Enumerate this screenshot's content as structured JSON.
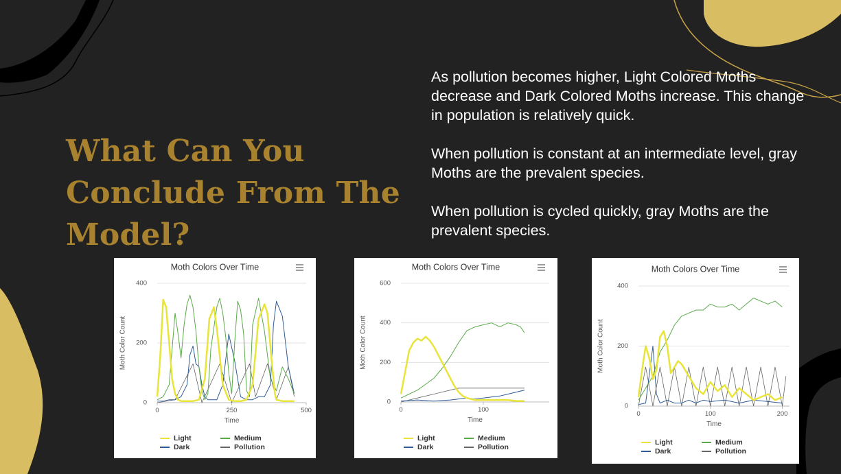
{
  "slide": {
    "title_lines": [
      "What Can You",
      "Conclude From The",
      "Model?"
    ],
    "paragraphs": [
      "As pollution becomes higher, Light Colored Moths decrease and Dark Colored Moths increase. This change in population is relatively quick.",
      "When pollution is constant at an intermediate level, gray Moths are the prevalent species.",
      "When pollution is cycled quickly, gray Moths are the prevalent species."
    ],
    "colors": {
      "background": "#232222",
      "title": "#a8822f",
      "text": "#ffffff",
      "gold": "#d9bd62"
    }
  },
  "chart_data": [
    {
      "type": "line",
      "title": "Moth Colors Over Time",
      "xlabel": "Time",
      "ylabel": "Moth Color Count",
      "xlim": [
        0,
        500
      ],
      "ylim": [
        0,
        400
      ],
      "xticks": [
        0,
        250,
        500
      ],
      "yticks": [
        0,
        200,
        400
      ],
      "grid": true,
      "legend": "bottom",
      "menu_icon": "hamburger-menu-icon",
      "series": [
        {
          "name": "Light",
          "color": "#e8e43a",
          "width": 2.5,
          "x": [
            0,
            10,
            20,
            30,
            40,
            50,
            60,
            70,
            80,
            90,
            100,
            120,
            140,
            160,
            175,
            190,
            200,
            220,
            240,
            260,
            280,
            300,
            320,
            340,
            360,
            370,
            385,
            395,
            400,
            420,
            440,
            460
          ],
          "y": [
            20,
            150,
            345,
            320,
            200,
            80,
            30,
            10,
            5,
            5,
            5,
            5,
            10,
            80,
            280,
            320,
            250,
            60,
            10,
            5,
            5,
            10,
            60,
            280,
            330,
            300,
            130,
            30,
            10,
            5,
            5,
            5
          ]
        },
        {
          "name": "Medium",
          "color": "#5aaa4a",
          "width": 1,
          "x": [
            0,
            20,
            40,
            50,
            60,
            70,
            80,
            90,
            100,
            110,
            120,
            130,
            140,
            150,
            160,
            170,
            180,
            200,
            210,
            220,
            230,
            240,
            250,
            260,
            270,
            280,
            290,
            300,
            310,
            320,
            340,
            360,
            380,
            400,
            420,
            440,
            460
          ],
          "y": [
            10,
            20,
            60,
            180,
            300,
            230,
            150,
            260,
            330,
            360,
            320,
            240,
            120,
            40,
            10,
            30,
            180,
            320,
            350,
            300,
            220,
            100,
            30,
            200,
            340,
            310,
            230,
            40,
            20,
            260,
            350,
            240,
            80,
            40,
            120,
            80,
            30
          ]
        },
        {
          "name": "Dark",
          "color": "#2f5b96",
          "width": 1,
          "x": [
            0,
            20,
            40,
            60,
            80,
            100,
            110,
            120,
            130,
            140,
            150,
            160,
            170,
            180,
            200,
            220,
            240,
            260,
            280,
            300,
            320,
            340,
            360,
            380,
            390,
            400,
            420,
            440,
            460
          ],
          "y": [
            5,
            5,
            10,
            10,
            20,
            60,
            160,
            190,
            130,
            120,
            60,
            20,
            10,
            10,
            10,
            60,
            230,
            140,
            20,
            10,
            10,
            20,
            20,
            60,
            260,
            340,
            290,
            120,
            30
          ]
        },
        {
          "name": "Pollution",
          "color": "#666666",
          "width": 0.8,
          "x": [
            0,
            60,
            120,
            150,
            210,
            250,
            310,
            330,
            370,
            400,
            440,
            460
          ],
          "y": [
            0,
            10,
            130,
            0,
            130,
            0,
            130,
            20,
            130,
            10,
            120,
            20
          ]
        }
      ]
    },
    {
      "type": "line",
      "title": "Moth Colors Over Time",
      "xlabel": "Time",
      "ylabel": "Moth Color Count",
      "xlim": [
        0,
        180
      ],
      "ylim": [
        0,
        600
      ],
      "xticks": [
        0,
        100
      ],
      "yticks": [
        0,
        200,
        400,
        600
      ],
      "grid": true,
      "legend": "bottom",
      "menu_icon": "hamburger-menu-icon",
      "series": [
        {
          "name": "Light",
          "color": "#e8e43a",
          "width": 2.5,
          "x": [
            0,
            5,
            10,
            15,
            20,
            25,
            30,
            35,
            40,
            45,
            50,
            55,
            60,
            65,
            70,
            75,
            80,
            85,
            90,
            100,
            110,
            120,
            130,
            140,
            150
          ],
          "y": [
            40,
            150,
            260,
            300,
            320,
            310,
            330,
            310,
            280,
            240,
            200,
            160,
            120,
            80,
            50,
            30,
            20,
            15,
            10,
            10,
            10,
            10,
            10,
            5,
            5
          ]
        },
        {
          "name": "Medium",
          "color": "#5aaa4a",
          "width": 1,
          "x": [
            0,
            10,
            20,
            30,
            40,
            50,
            60,
            70,
            80,
            90,
            100,
            110,
            120,
            130,
            140,
            145,
            150
          ],
          "y": [
            20,
            40,
            60,
            90,
            120,
            170,
            230,
            300,
            360,
            380,
            390,
            400,
            380,
            400,
            390,
            380,
            350
          ]
        },
        {
          "name": "Dark",
          "color": "#2f5b96",
          "width": 1,
          "x": [
            0,
            20,
            40,
            60,
            80,
            90,
            100,
            110,
            120,
            130,
            140,
            150
          ],
          "y": [
            5,
            10,
            5,
            10,
            20,
            15,
            20,
            25,
            30,
            40,
            50,
            60
          ]
        },
        {
          "name": "Pollution",
          "color": "#666666",
          "width": 0.8,
          "x": [
            0,
            20,
            40,
            60,
            70,
            80,
            100,
            120,
            150
          ],
          "y": [
            0,
            20,
            40,
            60,
            70,
            70,
            70,
            70,
            70
          ]
        }
      ]
    },
    {
      "type": "line",
      "title": "Moth Colors Over Time",
      "xlabel": "Time",
      "ylabel": "Moth Color Count",
      "xlim": [
        0,
        210
      ],
      "ylim": [
        0,
        400
      ],
      "xticks": [
        0,
        100,
        200
      ],
      "yticks": [
        0,
        200,
        400
      ],
      "grid": true,
      "legend": "bottom",
      "menu_icon": "hamburger-menu-icon",
      "series": [
        {
          "name": "Light",
          "color": "#e8e43a",
          "width": 2.5,
          "x": [
            0,
            5,
            10,
            15,
            20,
            25,
            30,
            35,
            40,
            45,
            50,
            55,
            60,
            70,
            80,
            90,
            100,
            110,
            120,
            130,
            140,
            150,
            160,
            170,
            180,
            190,
            200
          ],
          "y": [
            30,
            120,
            200,
            160,
            90,
            120,
            230,
            250,
            200,
            110,
            130,
            150,
            140,
            100,
            60,
            40,
            80,
            50,
            70,
            30,
            60,
            40,
            20,
            30,
            40,
            20,
            30
          ]
        },
        {
          "name": "Medium",
          "color": "#5aaa4a",
          "width": 1,
          "x": [
            0,
            10,
            20,
            30,
            40,
            50,
            60,
            70,
            80,
            90,
            100,
            110,
            120,
            130,
            140,
            150,
            160,
            170,
            180,
            190,
            200
          ],
          "y": [
            20,
            60,
            100,
            180,
            220,
            270,
            300,
            310,
            320,
            320,
            340,
            330,
            330,
            340,
            320,
            340,
            360,
            350,
            340,
            350,
            330
          ]
        },
        {
          "name": "Dark",
          "color": "#2f5b96",
          "width": 1,
          "x": [
            0,
            10,
            20,
            25,
            30,
            40,
            50,
            60,
            70,
            80,
            90,
            100,
            120,
            140,
            160,
            180,
            200
          ],
          "y": [
            5,
            10,
            200,
            40,
            10,
            20,
            10,
            10,
            20,
            10,
            20,
            15,
            20,
            10,
            20,
            15,
            10
          ]
        },
        {
          "name": "Pollution",
          "color": "#666666",
          "width": 0.8,
          "x": [
            0,
            10,
            20,
            30,
            40,
            50,
            60,
            70,
            80,
            90,
            100,
            110,
            120,
            130,
            140,
            150,
            160,
            170,
            180,
            190,
            200,
            205
          ],
          "y": [
            0,
            130,
            0,
            130,
            0,
            130,
            0,
            130,
            0,
            130,
            0,
            130,
            0,
            130,
            0,
            130,
            0,
            130,
            0,
            130,
            0,
            100
          ]
        }
      ]
    }
  ]
}
